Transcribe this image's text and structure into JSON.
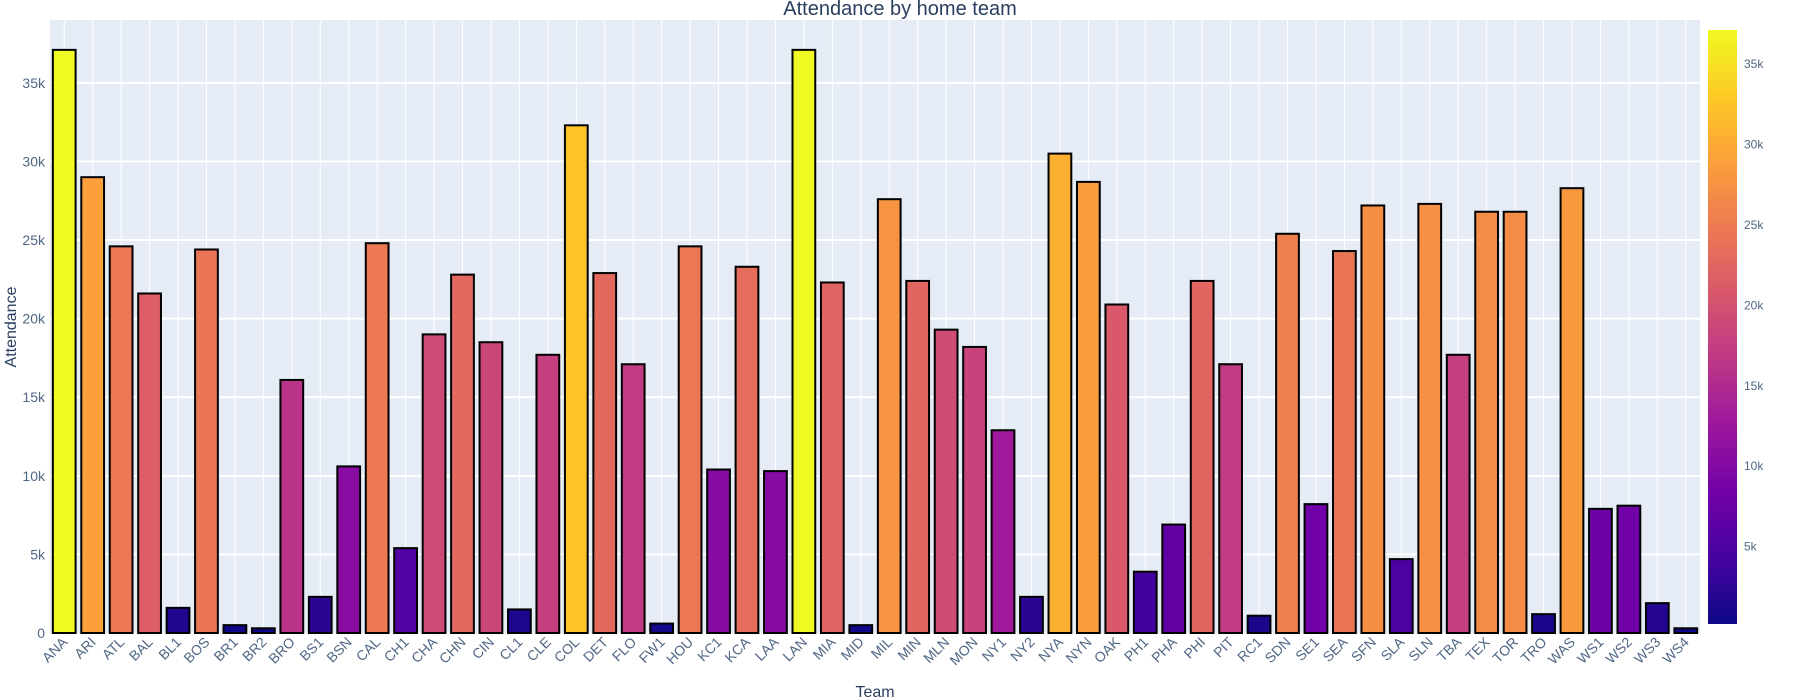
{
  "chart_data": {
    "type": "bar",
    "title": "Attendance by home team",
    "xlabel": "Team",
    "ylabel": "Attendance",
    "ylim": [
      0,
      39000
    ],
    "y_ticks": [
      {
        "value": 0,
        "label": "0"
      },
      {
        "value": 5000,
        "label": "5k"
      },
      {
        "value": 10000,
        "label": "10k"
      },
      {
        "value": 15000,
        "label": "15k"
      },
      {
        "value": 20000,
        "label": "20k"
      },
      {
        "value": 25000,
        "label": "25k"
      },
      {
        "value": 30000,
        "label": "30k"
      },
      {
        "value": 35000,
        "label": "35k"
      }
    ],
    "grid": true,
    "background_color": "#E5ECF6",
    "bar_outline_color": "#000000",
    "colorscale": "plasma",
    "colorscale_stops": [
      "#0d0887",
      "#46039f",
      "#7201a8",
      "#9c179e",
      "#bd3786",
      "#d8576b",
      "#ed7953",
      "#fb9f3a",
      "#fdca26",
      "#f0f921"
    ],
    "colorbar": {
      "range": [
        200,
        37100
      ],
      "ticks": [
        {
          "value": 5000,
          "label": "5k"
        },
        {
          "value": 10000,
          "label": "10k"
        },
        {
          "value": 15000,
          "label": "15k"
        },
        {
          "value": 20000,
          "label": "20k"
        },
        {
          "value": 25000,
          "label": "25k"
        },
        {
          "value": 30000,
          "label": "30k"
        },
        {
          "value": 35000,
          "label": "35k"
        }
      ]
    },
    "categories": [
      "ANA",
      "ARI",
      "ATL",
      "BAL",
      "BL1",
      "BOS",
      "BR1",
      "BR2",
      "BRO",
      "BS1",
      "BSN",
      "CAL",
      "CH1",
      "CHA",
      "CHN",
      "CIN",
      "CL1",
      "CLE",
      "COL",
      "DET",
      "FLO",
      "FW1",
      "HOU",
      "KC1",
      "KCA",
      "LAA",
      "LAN",
      "MIA",
      "MID",
      "MIL",
      "MIN",
      "MLN",
      "MON",
      "NY1",
      "NY2",
      "NYA",
      "NYN",
      "OAK",
      "PH1",
      "PHA",
      "PHI",
      "PIT",
      "RC1",
      "SDN",
      "SE1",
      "SEA",
      "SFN",
      "SLA",
      "SLN",
      "TBA",
      "TEX",
      "TOR",
      "TRO",
      "WAS",
      "WS1",
      "WS2",
      "WS3",
      "WS4"
    ],
    "values": [
      37100,
      29000,
      24600,
      21600,
      1600,
      24400,
      500,
      300,
      16100,
      2300,
      10600,
      24800,
      5400,
      19000,
      22800,
      18500,
      1500,
      17700,
      32300,
      22900,
      17100,
      600,
      24600,
      10400,
      23300,
      10300,
      37100,
      22300,
      500,
      27600,
      22400,
      19300,
      18200,
      12900,
      2300,
      30500,
      28700,
      20900,
      3900,
      6900,
      22400,
      17100,
      1100,
      25400,
      8200,
      24300,
      27200,
      4700,
      27300,
      17700,
      26800,
      26800,
      1200,
      28300,
      7900,
      8100,
      1900,
      300
    ]
  }
}
